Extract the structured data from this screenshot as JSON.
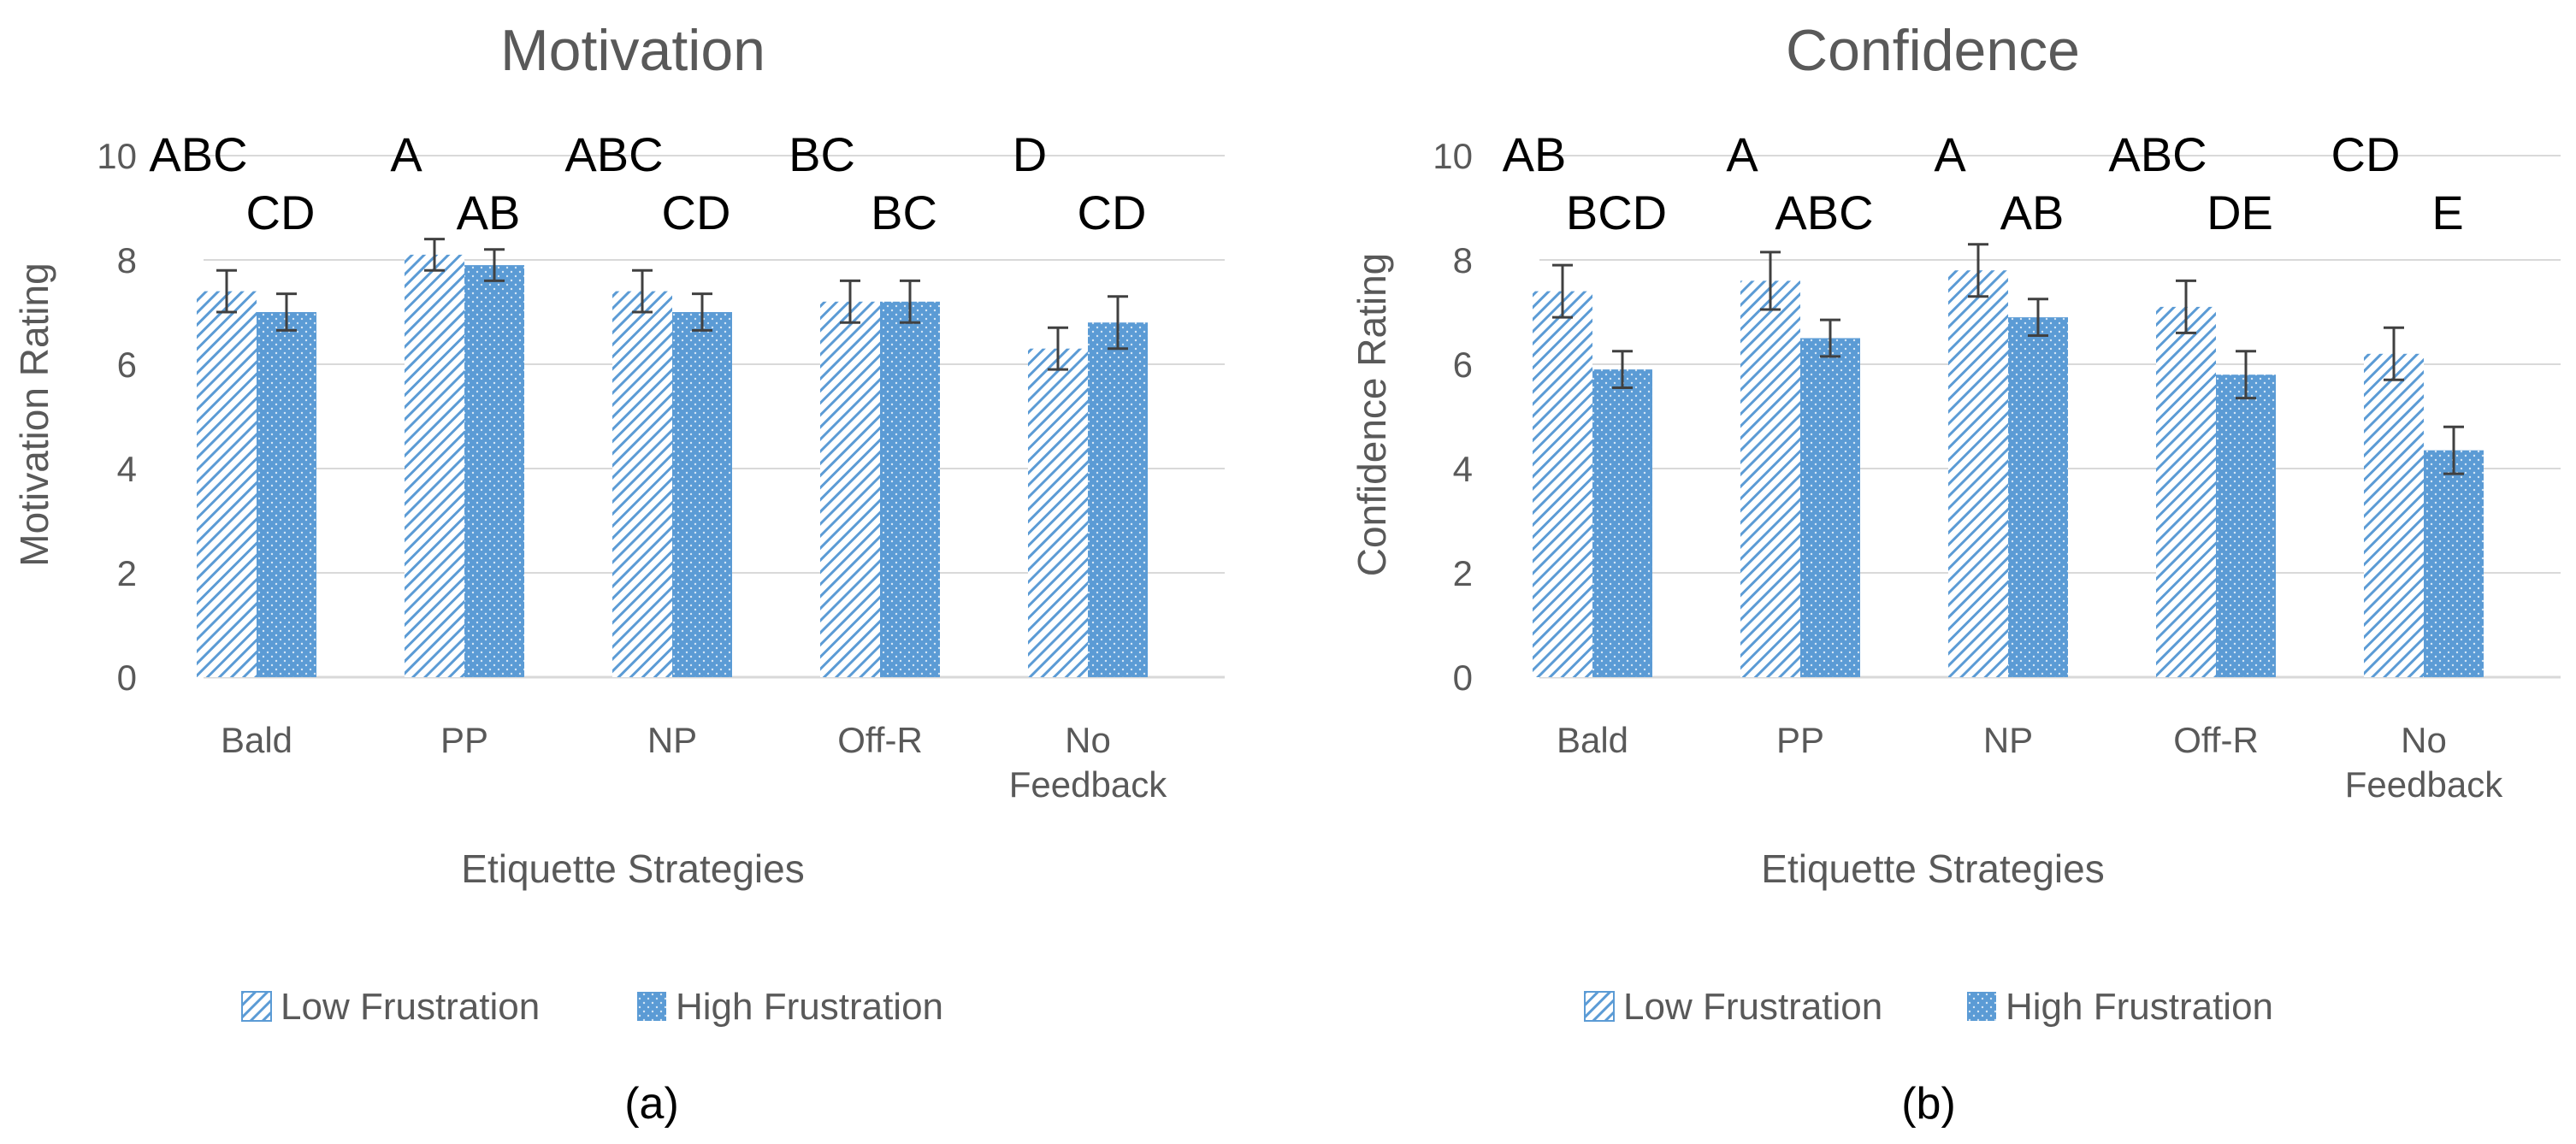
{
  "chart_data": [
    {
      "type": "bar",
      "title": "Motivation",
      "xlabel": "Etiquette Strategies",
      "ylabel": "Motivation Rating",
      "ylim": [
        0,
        10
      ],
      "yticks": [
        0,
        2,
        4,
        6,
        8,
        10
      ],
      "categories": [
        "Bald",
        "PP",
        "NP",
        "Off-R",
        "No Feedback"
      ],
      "series": [
        {
          "name": "Low Frustration",
          "values": [
            7.4,
            8.1,
            7.4,
            7.2,
            6.3
          ],
          "errors": [
            0.4,
            0.3,
            0.4,
            0.4,
            0.4
          ],
          "letters": [
            "ABC",
            "A",
            "ABC",
            "BC",
            "D"
          ]
        },
        {
          "name": "High Frustration",
          "values": [
            7.0,
            7.9,
            7.0,
            7.2,
            6.8
          ],
          "errors": [
            0.35,
            0.3,
            0.35,
            0.4,
            0.5
          ],
          "letters": [
            "CD",
            "AB",
            "CD",
            "BC",
            "CD"
          ]
        }
      ],
      "legend": "bottom",
      "caption": "(a)"
    },
    {
      "type": "bar",
      "title": "Confidence",
      "xlabel": "Etiquette Strategies",
      "ylabel": "Confidence Rating",
      "ylim": [
        0,
        10
      ],
      "yticks": [
        0,
        2,
        4,
        6,
        8,
        10
      ],
      "categories": [
        "Bald",
        "PP",
        "NP",
        "Off-R",
        "No Feedback"
      ],
      "series": [
        {
          "name": "Low Frustration",
          "values": [
            7.4,
            7.6,
            7.8,
            7.1,
            6.2
          ],
          "errors": [
            0.5,
            0.55,
            0.5,
            0.5,
            0.5
          ],
          "letters": [
            "AB",
            "A",
            "A",
            "ABC",
            "CD"
          ]
        },
        {
          "name": "High Frustration",
          "values": [
            5.9,
            6.5,
            6.9,
            5.8,
            4.35
          ],
          "errors": [
            0.35,
            0.35,
            0.35,
            0.45,
            0.45
          ],
          "letters": [
            "BCD",
            "ABC",
            "AB",
            "DE",
            "E"
          ]
        }
      ],
      "legend": "bottom",
      "caption": "(b)"
    }
  ],
  "colors": {
    "low": "#5b9bd5",
    "high": "#5b9bd5",
    "text": "#595959"
  }
}
